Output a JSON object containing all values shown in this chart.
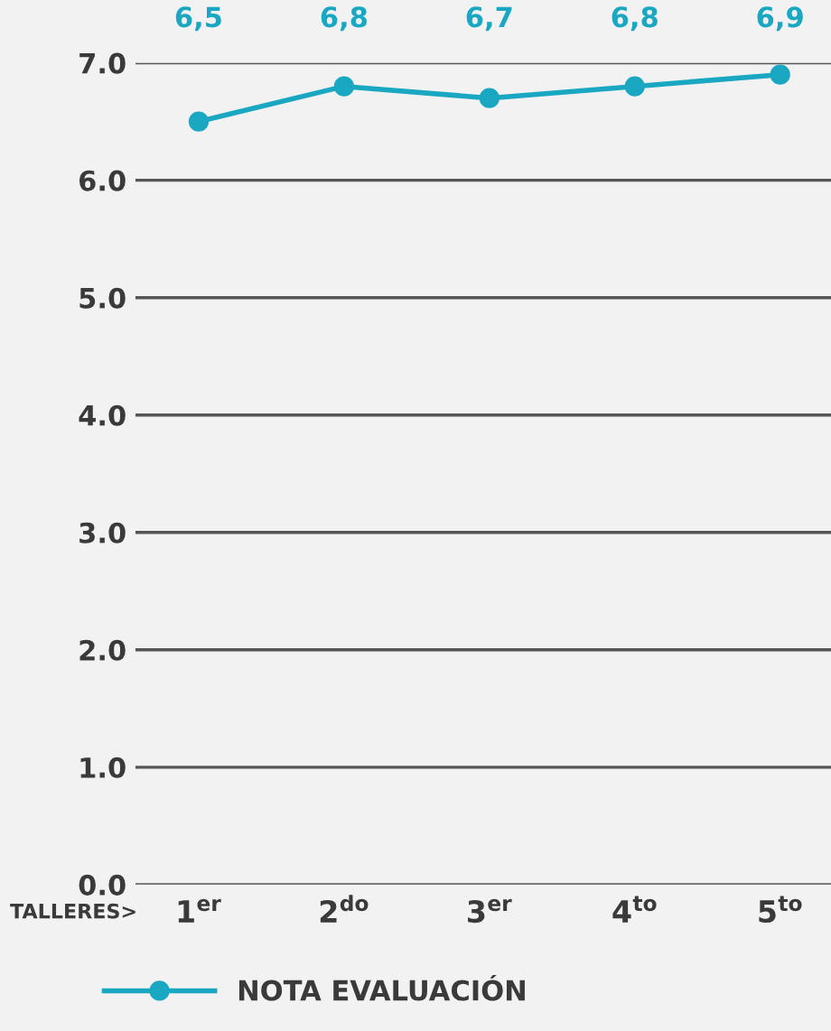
{
  "chart_data": {
    "type": "line",
    "xlabel": "TALLERES>",
    "categories": [
      "1$^{er}$",
      "2$^{do}$",
      "3$^{er}$",
      "4$^{to}$",
      "5$^{to}$"
    ],
    "series": [
      {
        "name": "NOTA EVALUACIÓN",
        "color": "#1aa7c1",
        "values": [
          6.5,
          6.8,
          6.7,
          6.8,
          6.9
        ],
        "value_labels": [
          "6,5",
          "6,8",
          "6,7",
          "6,8",
          "6,9"
        ]
      }
    ],
    "ylim": [
      0,
      7
    ],
    "yticks": [
      {
        "value": 0,
        "label": "0.0"
      },
      {
        "value": 1,
        "label": "1.0"
      },
      {
        "value": 2,
        "label": "2.0"
      },
      {
        "value": 3,
        "label": "3.0"
      },
      {
        "value": 4,
        "label": "4.0"
      },
      {
        "value": 5,
        "label": "5.0"
      },
      {
        "value": 6,
        "label": "6.0"
      },
      {
        "value": 7,
        "label": "7.0"
      }
    ],
    "grid": "y",
    "legend": "bottom",
    "marker": "circle",
    "line_style": "solid"
  }
}
